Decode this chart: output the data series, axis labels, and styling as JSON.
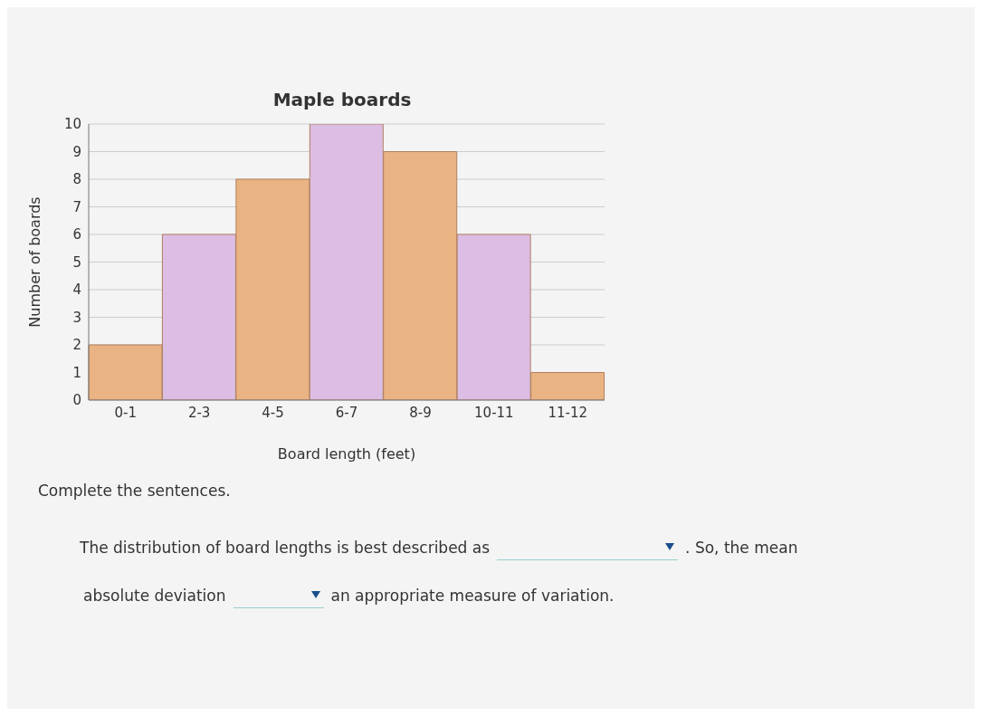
{
  "chart_data": {
    "type": "bar",
    "title": "Maple boards",
    "xlabel": "Board length (feet)",
    "ylabel": "Number of boards",
    "categories": [
      "0-1",
      "2-3",
      "4-5",
      "6-7",
      "8-9",
      "10-11",
      "11-12"
    ],
    "values": [
      2,
      6,
      8,
      10,
      9,
      6,
      1
    ],
    "colors": [
      "#eab383",
      "#dcbde3",
      "#eab383",
      "#dcbde3",
      "#eab383",
      "#dcbde3",
      "#eab383"
    ],
    "ylim": [
      0,
      10
    ],
    "yticks": [
      0,
      1,
      2,
      3,
      4,
      5,
      6,
      7,
      8,
      9,
      10
    ],
    "grid": "y",
    "annotations": [
      "Complete the sentences.",
      "The distribution of board lengths is best described as",
      ". So, the mean",
      "absolute deviation",
      "an appropriate measure of variation."
    ]
  }
}
